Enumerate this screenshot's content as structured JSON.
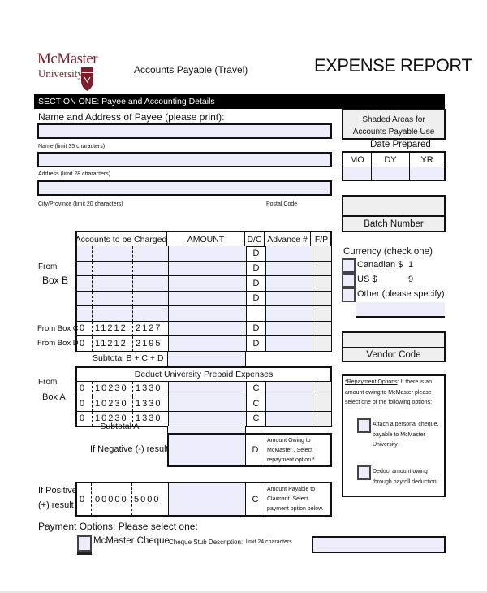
{
  "header": {
    "logo_line1": "McMaster",
    "logo_line2": "University",
    "subtitle": "Accounts Payable (Travel)",
    "title": "EXPENSE REPORT"
  },
  "section_one": {
    "bar": "SECTION ONE:  Payee and Accounting Details",
    "payee_label": "Name and Address of Payee (please print):",
    "name_hint": "Name (limit 35 characters)",
    "address_hint": "Address (limit 28 characters)",
    "city_hint": "City/Province (limit 20 characters)",
    "postal_hint": "Postal Code"
  },
  "sidebar": {
    "shaded": "Shaded Areas for Accounts Payable Use",
    "date_prepared": "Date Prepared",
    "date_cols": [
      "MO",
      "DY",
      "YR"
    ],
    "batch": "Batch Number",
    "currency_title": "Currency (check one)",
    "currencies": [
      {
        "label": "Canadian $",
        "code": "1"
      },
      {
        "label": "US $",
        "code": "9"
      },
      {
        "label": "Other (please specify)",
        "code": ""
      }
    ],
    "vendor": "Vendor Code",
    "repayment_title": "*Repayment Options",
    "repayment_text": ": If there is an amount owing to McMaster please select one of the following options:",
    "repay_options": [
      "Attach a personal cheque, payable to McMaster University",
      "Deduct amount owing through payroll deduction"
    ]
  },
  "table": {
    "headers": [
      "Accounts to be Charged",
      "AMOUNT",
      "D/C",
      "Advance #",
      "F/P"
    ],
    "rows": [
      {
        "label": "",
        "a": "",
        "b": "",
        "c": "",
        "dc": "D"
      },
      {
        "label": "",
        "a": "",
        "b": "",
        "c": "",
        "dc": "D"
      },
      {
        "label": "",
        "a": "",
        "b": "",
        "c": "",
        "dc": "D"
      },
      {
        "label": "",
        "a": "",
        "b": "",
        "c": "",
        "dc": "D"
      },
      {
        "label": "",
        "a": "",
        "b": "",
        "c": "",
        "dc": ""
      },
      {
        "label": "From Box C",
        "a": "0",
        "b": "11212",
        "c": "2127",
        "dc": "D"
      },
      {
        "label": "From Box D",
        "a": "0",
        "b": "11212",
        "c": "2195",
        "dc": "D"
      }
    ],
    "from_box_b": [
      "From",
      "Box B"
    ],
    "subtotal_bcd": "Subtotal  B + C + D",
    "deduct_header": "Deduct University Prepaid Expenses",
    "deduct_rows": [
      {
        "a": "0",
        "b": "10230",
        "c": "1330",
        "dc": "C"
      },
      {
        "a": "0",
        "b": "10230",
        "c": "1330",
        "dc": "C"
      },
      {
        "a": "0",
        "b": "10230",
        "c": "1330",
        "dc": "C"
      }
    ],
    "from_box_a": [
      "From",
      "Box A"
    ],
    "subtotal_a": "- Subtotal A",
    "negative_label": "If Negative (-) result",
    "negative_dc": "D",
    "negative_note": "Amount Owing to McMaster . Select repayment option.*",
    "positive_label": [
      "If Positive",
      "(+) result"
    ],
    "positive": {
      "a": "0",
      "b": "00000",
      "c": "5000",
      "dc": "C"
    },
    "positive_note": "Amount Payable to Claimant. Select payment option below."
  },
  "payment": {
    "title": "Payment Options:  Please select one:",
    "option": "McMaster Cheque",
    "stub_label": "Cheque Stub Description:",
    "stub_hint": "limit 24 characters"
  }
}
